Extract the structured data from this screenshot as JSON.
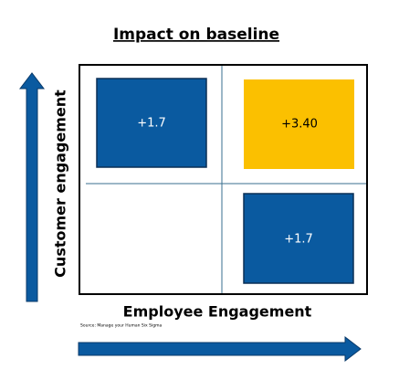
{
  "title": "Impact on baseline",
  "y_axis_label": "Customer engagement",
  "x_axis_label": "Employee Engagement",
  "source": "Source: Manage your Human Six Sigma",
  "quadrants": [
    {
      "position": "top-left",
      "label": "+1.7"
    },
    {
      "position": "top-right",
      "label": "+3.40"
    },
    {
      "position": "bottom-right",
      "label": "+1.7"
    }
  ]
}
